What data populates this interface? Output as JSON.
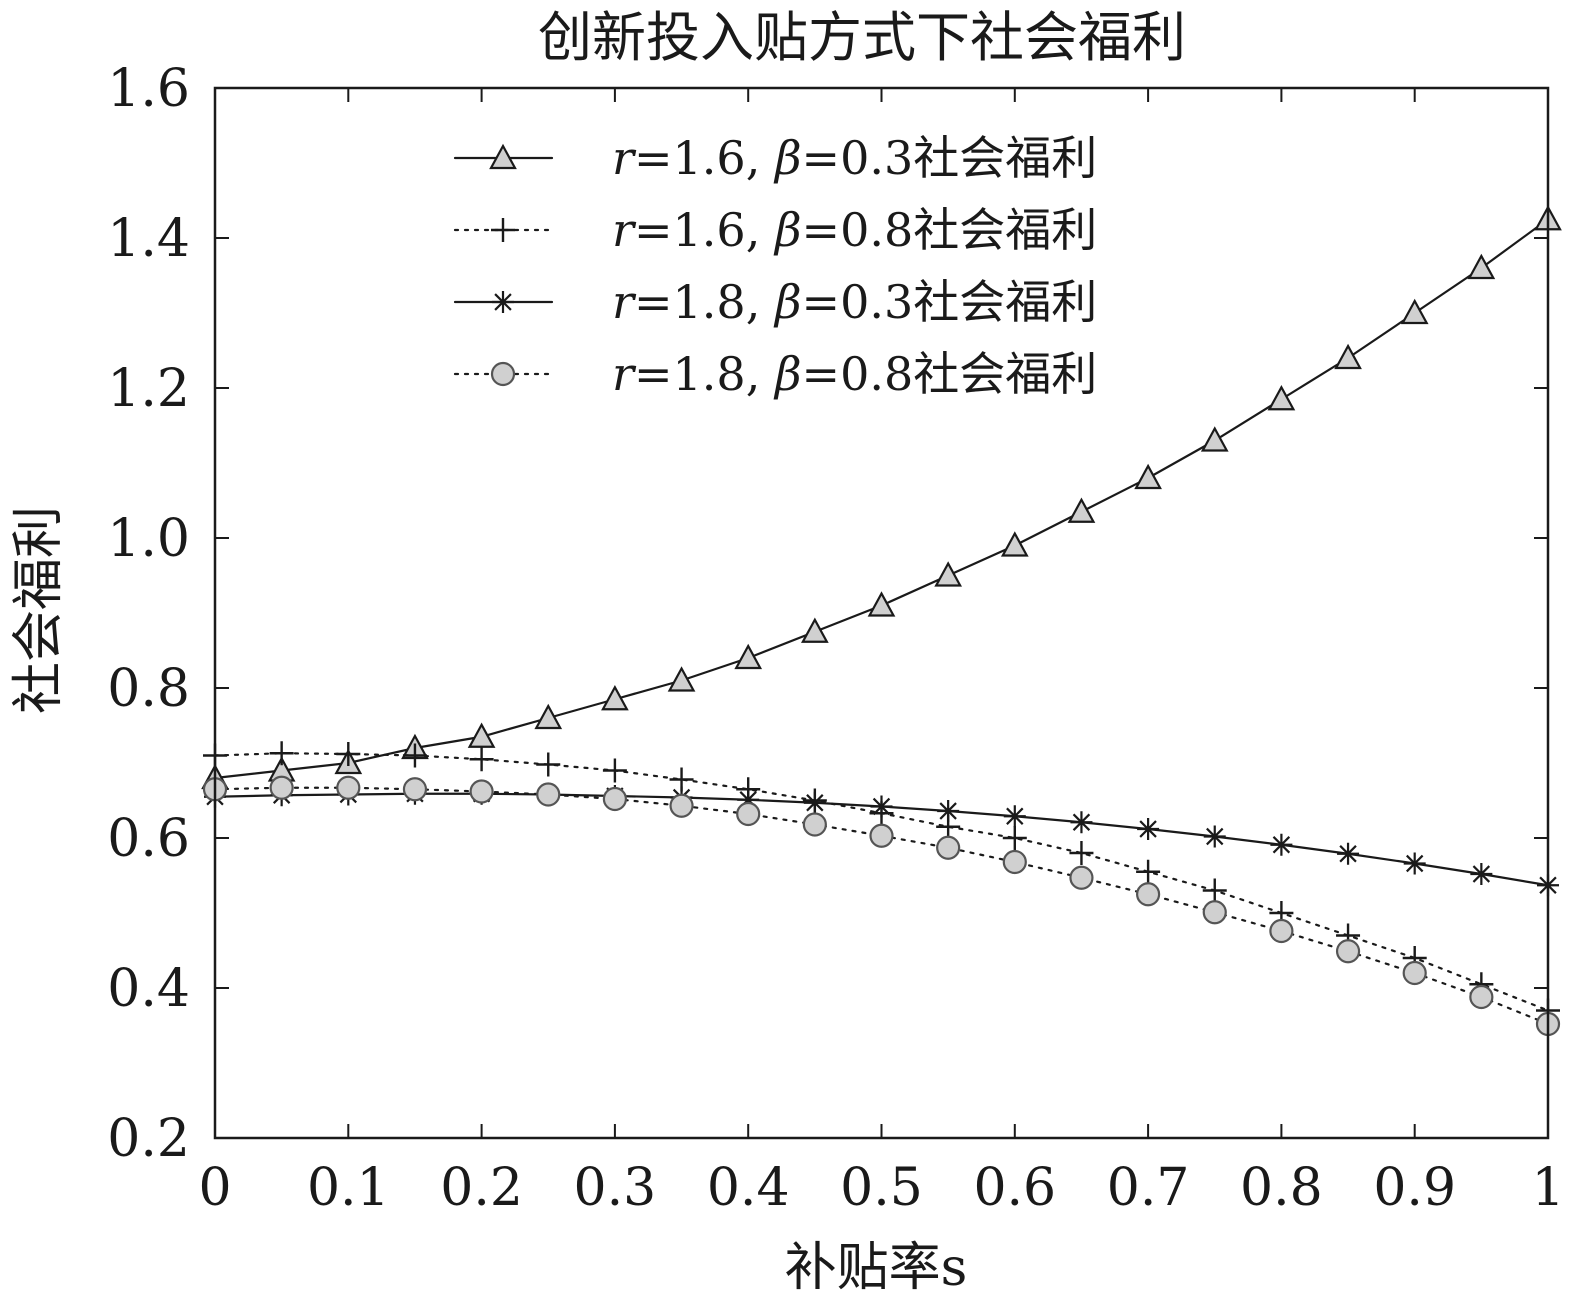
{
  "chart_data": {
    "type": "line",
    "title": "创新投入贴方式下社会福利",
    "xlabel": "补贴率s",
    "ylabel": "社会福利",
    "xlim": [
      0,
      1
    ],
    "ylim": [
      0.2,
      1.6
    ],
    "x_ticks": [
      "0",
      "0.1",
      "0.2",
      "0.3",
      "0.4",
      "0.5",
      "0.6",
      "0.7",
      "0.8",
      "0.9",
      "1"
    ],
    "y_ticks": [
      "0.2",
      "0.4",
      "0.6",
      "0.8",
      "1.0",
      "1.2",
      "1.4",
      "1.6"
    ],
    "grid": false,
    "legend_position": "top-center",
    "x": [
      0,
      0.05,
      0.1,
      0.15,
      0.2,
      0.25,
      0.3,
      0.35,
      0.4,
      0.45,
      0.5,
      0.55,
      0.6,
      0.65,
      0.7,
      0.75,
      0.8,
      0.85,
      0.9,
      0.95,
      1.0
    ],
    "series": [
      {
        "name": "r=1.6, β=0.3社会福利",
        "legend_parts": {
          "r": "r",
          "r_val": "=1.6, ",
          "beta": "β",
          "beta_val": "=0.3社会福利"
        },
        "marker": "triangle",
        "line": "solid",
        "values": [
          0.68,
          0.69,
          0.7,
          0.72,
          0.735,
          0.76,
          0.785,
          0.81,
          0.84,
          0.875,
          0.91,
          0.95,
          0.99,
          1.035,
          1.08,
          1.13,
          1.185,
          1.24,
          1.3,
          1.36,
          1.425
        ]
      },
      {
        "name": "r=1.6, β=0.8社会福利",
        "legend_parts": {
          "r": "r",
          "r_val": "=1.6, ",
          "beta": "β",
          "beta_val": "=0.8社会福利"
        },
        "marker": "plus",
        "line": "dotted",
        "values": [
          0.71,
          0.713,
          0.712,
          0.71,
          0.705,
          0.698,
          0.69,
          0.678,
          0.665,
          0.65,
          0.633,
          0.615,
          0.6,
          0.58,
          0.555,
          0.53,
          0.5,
          0.47,
          0.44,
          0.405,
          0.37
        ]
      },
      {
        "name": "r=1.8, β=0.3社会福利",
        "legend_parts": {
          "r": "r",
          "r_val": "=1.8, ",
          "beta": "β",
          "beta_val": "=0.3社会福利"
        },
        "marker": "star",
        "line": "solid",
        "values": [
          0.655,
          0.657,
          0.658,
          0.659,
          0.659,
          0.658,
          0.656,
          0.654,
          0.651,
          0.647,
          0.642,
          0.636,
          0.629,
          0.621,
          0.612,
          0.602,
          0.591,
          0.579,
          0.566,
          0.552,
          0.537
        ]
      },
      {
        "name": "r=1.8, β=0.8社会福利",
        "legend_parts": {
          "r": "r",
          "r_val": "=1.8, ",
          "beta": "β",
          "beta_val": "=0.8社会福利"
        },
        "marker": "circle",
        "line": "dotted",
        "values": [
          0.665,
          0.667,
          0.667,
          0.665,
          0.662,
          0.658,
          0.652,
          0.643,
          0.632,
          0.618,
          0.603,
          0.587,
          0.568,
          0.547,
          0.525,
          0.501,
          0.476,
          0.449,
          0.42,
          0.388,
          0.352
        ]
      }
    ]
  }
}
